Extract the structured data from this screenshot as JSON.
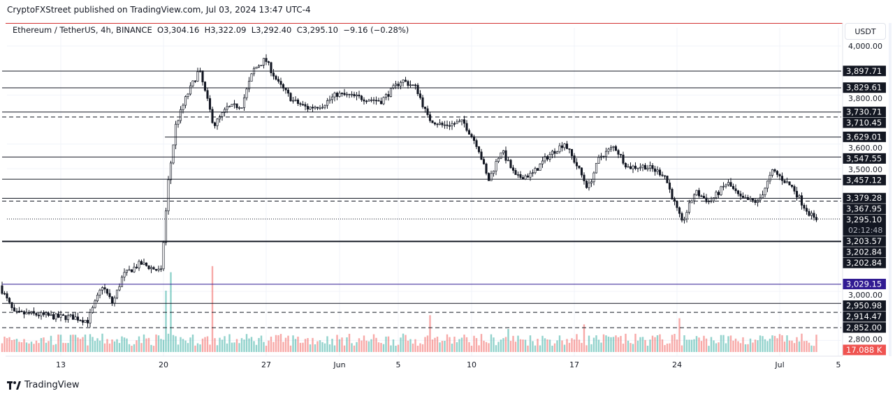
{
  "header": {
    "published": "CryptoFXStreet published on TradingView.com, Jul 03, 2024 13:47 UTC-4",
    "legend": "Ethereum / TetherUS, 4h, BINANCE  O3,304.16  H3,322.09  L3,292.40  C3,295.10  −9.16 (−0.28%)",
    "currency_button": "USDT"
  },
  "footer": {
    "brand": "TradingView",
    "logo_icon": "tradingview-logo-icon"
  },
  "colors": {
    "up": "#26a69a",
    "down": "#ef5350",
    "candle": "#131722",
    "level": "#131722",
    "blue_level": "#311b92",
    "label_bg": "#131722",
    "volume_label_bg": "#ef5350",
    "grid": "#f0f3fa"
  },
  "chart_data": {
    "type": "candlestick",
    "symbol": "ETH/USDT",
    "timeframe": "4h",
    "ylim": [
      2760,
      4010
    ],
    "y_ticks": [
      {
        "value": 4000,
        "label": "4,000.00"
      },
      {
        "value": 3800,
        "label": "3,800.00"
      },
      {
        "value": 3600,
        "label": "3,600.00"
      },
      {
        "value": 3500,
        "label": "3,500.00"
      },
      {
        "value": 3000,
        "label": "3,000.00"
      },
      {
        "value": 2800,
        "label": "2,800.00"
      }
    ],
    "x_ticks": [
      {
        "day": 13,
        "label": "13"
      },
      {
        "day": 20,
        "label": "20"
      },
      {
        "day": 27,
        "label": "27"
      },
      {
        "day": 32,
        "label": "Jun"
      },
      {
        "day": 36,
        "label": "5"
      },
      {
        "day": 41,
        "label": "10"
      },
      {
        "day": 48,
        "label": "17"
      },
      {
        "day": 55,
        "label": "24"
      },
      {
        "day": 62,
        "label": "Jul"
      },
      {
        "day": 66,
        "label": "5"
      }
    ],
    "approx_path": [
      [
        "May 9",
        3023
      ],
      [
        "May 10",
        2909
      ],
      [
        "May 11",
        2909
      ],
      [
        "May 13",
        2895
      ],
      [
        "May 14",
        2895
      ],
      [
        "May 15",
        2880
      ],
      [
        "May 16",
        3023
      ],
      [
        "May 16.7",
        2950
      ],
      [
        "May 17.4",
        3065
      ],
      [
        "May 18.6",
        3114
      ],
      [
        "May 20",
        3080
      ],
      [
        "May 20.5",
        3449
      ],
      [
        "May 21",
        3676
      ],
      [
        "May 21.7",
        3790
      ],
      [
        "May 22.6",
        3903
      ],
      [
        "May 23.1",
        3790
      ],
      [
        "May 23.6",
        3676
      ],
      [
        "May 24.5",
        3747
      ],
      [
        "May 25.5",
        3760
      ],
      [
        "May 26.3",
        3903
      ],
      [
        "May 27.1",
        3946
      ],
      [
        "May 28",
        3847
      ],
      [
        "May 29",
        3776
      ],
      [
        "May 30",
        3747
      ],
      [
        "May 31",
        3760
      ],
      [
        "Jun 1",
        3804
      ],
      [
        "Jun 2.5",
        3790
      ],
      [
        "Jun 4",
        3776
      ],
      [
        "Jun 5.4",
        3861
      ],
      [
        "Jun 6.4",
        3830
      ],
      [
        "Jun 7.2",
        3705
      ],
      [
        "Jun 8.2",
        3676
      ],
      [
        "Jun 9.6",
        3690
      ],
      [
        "Jun 10.6",
        3591
      ],
      [
        "Jun 11.3",
        3449
      ],
      [
        "Jun 12.2",
        3577
      ],
      [
        "Jun 13.2",
        3463
      ],
      [
        "Jun 14.3",
        3477
      ],
      [
        "Jun 15.3",
        3548
      ],
      [
        "Jun 16.5",
        3605
      ],
      [
        "Jun 17.4",
        3506
      ],
      [
        "Jun 18.1",
        3420
      ],
      [
        "Jun 18.9",
        3548
      ],
      [
        "Jun 19.9",
        3591
      ],
      [
        "Jun 20.8",
        3506
      ],
      [
        "Jun 22",
        3510
      ],
      [
        "Jun 23.3",
        3477
      ],
      [
        "Jun 23.8",
        3392
      ],
      [
        "Jun 24.5",
        3278
      ],
      [
        "Jun 25.4",
        3406
      ],
      [
        "Jun 26.4",
        3364
      ],
      [
        "Jun 27.6",
        3443
      ],
      [
        "Jun 28.5",
        3378
      ],
      [
        "Jun 29.7",
        3364
      ],
      [
        "Jul 0.7",
        3491
      ],
      [
        "Jul 2.1",
        3420
      ],
      [
        "Jul 2.8",
        3349
      ],
      [
        "Jul 3.5",
        3295.1
      ]
    ],
    "levels": [
      {
        "price": 3897.71,
        "label": "3,897.71",
        "style": "solid",
        "from_day": 9
      },
      {
        "price": 3829.61,
        "label": "3,829.61",
        "style": "solid",
        "from_day": 9
      },
      {
        "price": 3730.71,
        "label": "3,730.71",
        "style": "solid",
        "from_day": 9
      },
      {
        "price": 3710.45,
        "label": "3,710.45",
        "style": "dashed",
        "from_day": 9
      },
      {
        "price": 3629.01,
        "label": "3,629.01",
        "style": "solid",
        "from_day": 20.1
      },
      {
        "price": 3547.55,
        "label": "3,547.55",
        "style": "solid",
        "from_day": 9
      },
      {
        "price": 3457.12,
        "label": "3,457.12",
        "style": "solid",
        "from_day": 9
      },
      {
        "price": 3379.28,
        "label": "3,379.28",
        "style": "solid",
        "from_day": 9
      },
      {
        "price": 3367.95,
        "label": "3,367.95",
        "style": "dashed",
        "from_day": 9
      },
      {
        "price": 3203.57,
        "label": "3,203.57",
        "style": "thick",
        "from_day": 9
      },
      {
        "price": 3202.84,
        "label": "3,202.84",
        "style": "none",
        "from_day": 9
      },
      {
        "price": 3202.84,
        "label": "3,202.84",
        "style": "none",
        "from_day": 9
      },
      {
        "price": 3029.15,
        "label": "3,029.15",
        "style": "blue",
        "from_day": 9
      },
      {
        "price": 2950.98,
        "label": "2,950.98",
        "style": "solid",
        "from_day": 9
      },
      {
        "price": 2914.47,
        "label": "2,914.47",
        "style": "dashed",
        "from_day": 9
      },
      {
        "price": 2852.0,
        "label": "2,852.00",
        "style": "dashed",
        "from_day": 9
      }
    ],
    "last_price": {
      "value": 3295.1,
      "label": "3,295.10",
      "countdown": "02:12:48"
    },
    "volume": {
      "last_label": "17.088 K",
      "spikes": [
        [
          "May 20.5",
          5.2
        ],
        [
          "May 23.3",
          5.6
        ],
        [
          "May 20.2",
          4.0
        ],
        [
          "Jun 7.2",
          2.4
        ],
        [
          "Jun 24.2",
          2.2
        ],
        [
          "Jun 17.6",
          1.8
        ],
        [
          "Jun 12.5",
          1.5
        ]
      ]
    }
  }
}
